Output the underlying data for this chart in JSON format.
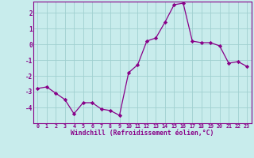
{
  "x": [
    0,
    1,
    2,
    3,
    4,
    5,
    6,
    7,
    8,
    9,
    10,
    11,
    12,
    13,
    14,
    15,
    16,
    17,
    18,
    19,
    20,
    21,
    22,
    23
  ],
  "y": [
    -2.8,
    -2.7,
    -3.1,
    -3.5,
    -4.4,
    -3.7,
    -3.7,
    -4.1,
    -4.2,
    -4.5,
    -1.8,
    -1.3,
    0.2,
    0.4,
    1.4,
    2.5,
    2.6,
    0.2,
    0.1,
    0.1,
    -0.1,
    -1.2,
    -1.1,
    -1.4
  ],
  "line_color": "#880088",
  "marker": "D",
  "marker_size": 2.2,
  "bg_color": "#c8ecec",
  "grid_color": "#a0d0d0",
  "xlabel": "Windchill (Refroidissement éolien,°C)",
  "xlim": [
    -0.5,
    23.5
  ],
  "ylim": [
    -5.0,
    2.7
  ],
  "yticks": [
    -4,
    -3,
    -2,
    -1,
    0,
    1,
    2
  ],
  "xticks": [
    0,
    1,
    2,
    3,
    4,
    5,
    6,
    7,
    8,
    9,
    10,
    11,
    12,
    13,
    14,
    15,
    16,
    17,
    18,
    19,
    20,
    21,
    22,
    23
  ],
  "xtick_labels": [
    "0",
    "1",
    "2",
    "3",
    "4",
    "5",
    "6",
    "7",
    "8",
    "9",
    "10",
    "11",
    "12",
    "13",
    "14",
    "15",
    "16",
    "17",
    "18",
    "19",
    "20",
    "21",
    "22",
    "23"
  ],
  "tick_color": "#880088",
  "label_color": "#880088",
  "spine_color": "#880088"
}
